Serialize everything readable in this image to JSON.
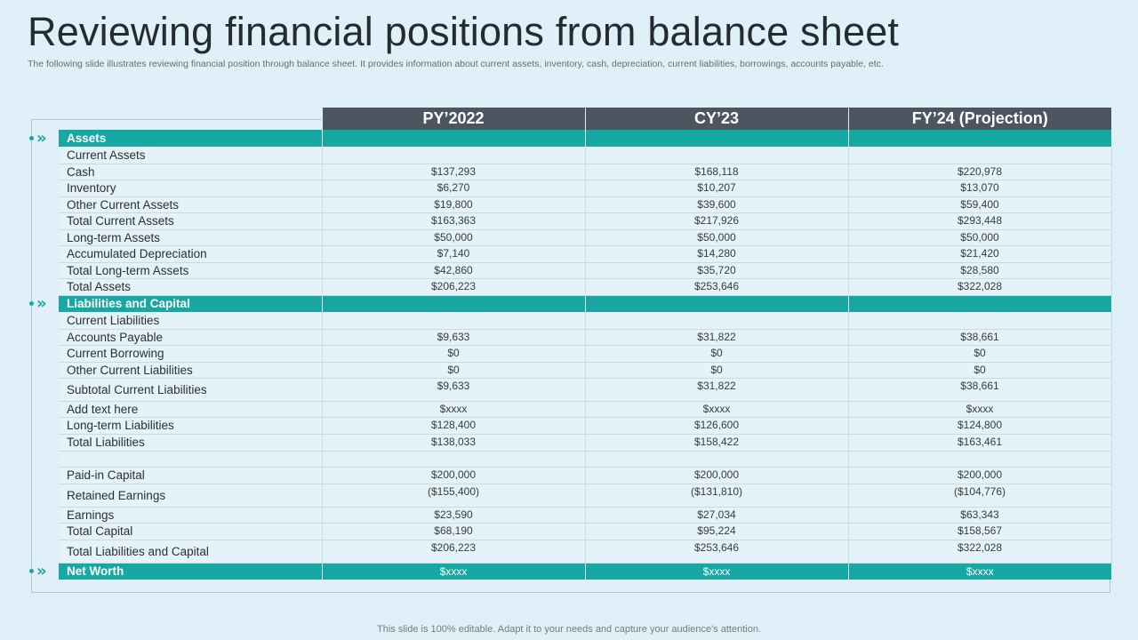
{
  "title": "Reviewing financial positions from balance sheet",
  "subtitle": "The following slide illustrates reviewing financial position through balance sheet. It provides information about current assets, inventory, cash, depreciation, current liabilities, borrowings, accounts payable, etc.",
  "footer": "This slide is 100% editable. Adapt it to your needs and capture your audience's attention.",
  "colors": {
    "section_bg": "#18a8a3",
    "header_bg": "#4d5660",
    "page_bg": "#dff0f8"
  },
  "icons": {
    "bullet": "chevron-double-right-icon"
  },
  "columns": [
    "PY’2022",
    "CY’23",
    "FY’24 (Projection)"
  ],
  "rows": [
    {
      "kind": "section",
      "label": "Assets",
      "values": [
        "",
        "",
        ""
      ]
    },
    {
      "kind": "row",
      "label": "Current Assets",
      "values": [
        "",
        "",
        ""
      ]
    },
    {
      "kind": "row",
      "label": "Cash",
      "values": [
        "$137,293",
        "$168,118",
        "$220,978"
      ]
    },
    {
      "kind": "row",
      "label": "Inventory",
      "values": [
        "$6,270",
        "$10,207",
        "$13,070"
      ]
    },
    {
      "kind": "row",
      "label": "Other Current Assets",
      "values": [
        "$19,800",
        "$39,600",
        "$59,400"
      ]
    },
    {
      "kind": "row",
      "label": "Total Current Assets",
      "values": [
        "$163,363",
        "$217,926",
        "$293,448"
      ]
    },
    {
      "kind": "row",
      "label": "Long-term Assets",
      "values": [
        "$50,000",
        "$50,000",
        "$50,000"
      ]
    },
    {
      "kind": "row",
      "label": "Accumulated Depreciation",
      "values": [
        "$7,140",
        "$14,280",
        "$21,420"
      ]
    },
    {
      "kind": "row",
      "label": "Total Long-term Assets",
      "values": [
        "$42,860",
        "$35,720",
        "$28,580"
      ]
    },
    {
      "kind": "row",
      "label": "Total Assets",
      "values": [
        "$206,223",
        "$253,646",
        "$322,028"
      ]
    },
    {
      "kind": "section",
      "label": "Liabilities and Capital",
      "values": [
        "",
        "",
        ""
      ]
    },
    {
      "kind": "row",
      "label": "Current Liabilities",
      "values": [
        "",
        "",
        ""
      ]
    },
    {
      "kind": "row",
      "label": "Accounts Payable",
      "values": [
        "$9,633",
        "$31,822",
        "$38,661"
      ]
    },
    {
      "kind": "row",
      "label": "Current Borrowing",
      "values": [
        "$0",
        "$0",
        "$0"
      ]
    },
    {
      "kind": "row",
      "label": "Other Current Liabilities",
      "values": [
        "$0",
        "$0",
        "$0"
      ]
    },
    {
      "kind": "row",
      "label": "Subtotal Current Liabilities",
      "values": [
        "$9,633",
        "$31,822",
        "$38,661"
      ]
    },
    {
      "kind": "row",
      "label": "Add text here",
      "values": [
        "$xxxx",
        "$xxxx",
        "$xxxx"
      ]
    },
    {
      "kind": "row",
      "label": "Long-term Liabilities",
      "values": [
        "$128,400",
        "$126,600",
        "$124,800"
      ]
    },
    {
      "kind": "row",
      "label": "Total Liabilities",
      "values": [
        "$138,033",
        "$158,422",
        "$163,461"
      ]
    },
    {
      "kind": "row",
      "label": "",
      "values": [
        "",
        "",
        ""
      ]
    },
    {
      "kind": "row",
      "label": "Paid-in Capital",
      "values": [
        "$200,000",
        "$200,000",
        "$200,000"
      ]
    },
    {
      "kind": "row",
      "label": "Retained Earnings",
      "values": [
        "($155,400)",
        "($131,810)",
        "($104,776)"
      ]
    },
    {
      "kind": "row",
      "label": "Earnings",
      "values": [
        "$23,590",
        "$27,034",
        "$63,343"
      ]
    },
    {
      "kind": "row",
      "label": "Total Capital",
      "values": [
        "$68,190",
        "$95,224",
        "$158,567"
      ]
    },
    {
      "kind": "row",
      "label": "Total Liabilities and Capital",
      "values": [
        "$206,223",
        "$253,646",
        "$322,028"
      ]
    },
    {
      "kind": "section",
      "label": "Net Worth",
      "values": [
        "$xxxx",
        "$xxxx",
        "$xxxx"
      ]
    }
  ]
}
